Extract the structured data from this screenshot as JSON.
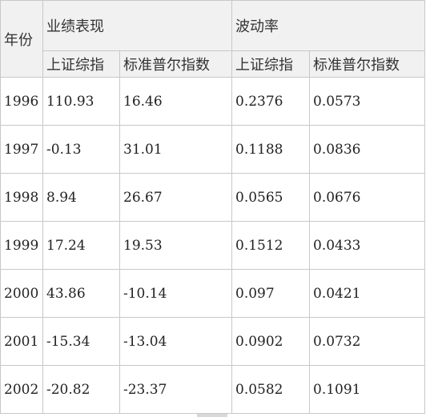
{
  "headers": {
    "year": "年份",
    "performance_group": "业绩表现",
    "volatility_group": "波动率",
    "perf_shanghai": "上证综指",
    "perf_sp": "标准普尔指数",
    "vol_shanghai": "上证综指",
    "vol_sp": "标准普尔指数"
  },
  "rows": [
    {
      "year": "1996",
      "perf_shanghai": "110.93",
      "perf_sp": "16.46",
      "vol_shanghai": "0.2376",
      "vol_sp": "0.0573"
    },
    {
      "year": "1997",
      "perf_shanghai": "-0.13",
      "perf_sp": "31.01",
      "vol_shanghai": "0.1188",
      "vol_sp": "0.0836"
    },
    {
      "year": "1998",
      "perf_shanghai": "8.94",
      "perf_sp": "26.67",
      "vol_shanghai": "0.0565",
      "vol_sp": "0.0676"
    },
    {
      "year": "1999",
      "perf_shanghai": "17.24",
      "perf_sp": "19.53",
      "vol_shanghai": "0.1512",
      "vol_sp": "0.0433"
    },
    {
      "year": "2000",
      "perf_shanghai": "43.86",
      "perf_sp": "-10.14",
      "vol_shanghai": "0.097",
      "vol_sp": "0.0421"
    },
    {
      "year": "2001",
      "perf_shanghai": "-15.34",
      "perf_sp": "-13.04",
      "vol_shanghai": "0.0902",
      "vol_sp": "0.0732"
    },
    {
      "year": "2002",
      "perf_shanghai": "-20.82",
      "perf_sp": "-23.37",
      "vol_shanghai": "0.0582",
      "vol_sp": "0.1091"
    }
  ],
  "colors": {
    "header_bg": "#f1f1f1",
    "border": "#c8c8c8",
    "text": "#222222"
  }
}
